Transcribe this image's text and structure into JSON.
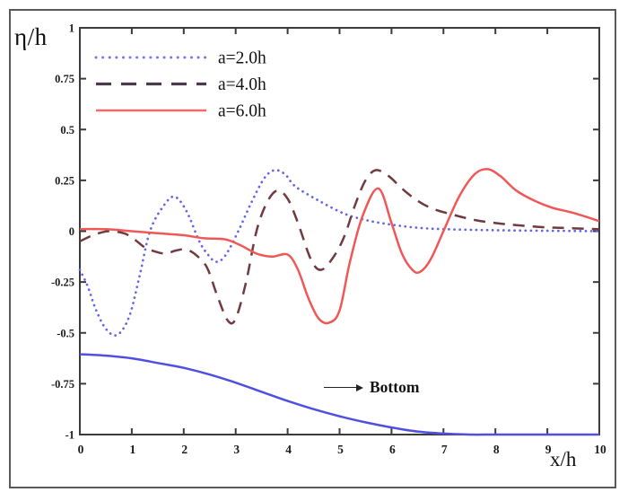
{
  "figure": {
    "y_axis_label": "η/h",
    "x_axis_label": "x/h"
  },
  "chart_data": {
    "type": "line",
    "title": "",
    "xlabel": "x/h",
    "ylabel": "η/h",
    "xlim": [
      0,
      10
    ],
    "ylim": [
      -1,
      1
    ],
    "grid": false,
    "x_ticks": [
      0,
      1,
      2,
      3,
      4,
      5,
      6,
      7,
      8,
      9,
      10
    ],
    "x_tick_labels": [
      "0",
      "1",
      "2",
      "3",
      "4",
      "5",
      "6",
      "7",
      "8",
      "9",
      "10"
    ],
    "y_ticks": [
      1,
      0.75,
      0.5,
      0.25,
      0,
      -0.25,
      -0.5,
      -0.75,
      -1
    ],
    "y_tick_labels": [
      "1",
      "0.75",
      "0.5",
      "0.25",
      "0",
      "-0.25",
      "-0.5",
      "-0.75",
      "-1"
    ],
    "axis_color": "#3b3b3b",
    "tick_label_color": "#1b1b1b",
    "legend": {
      "position": "top-left-inside",
      "entries": [
        {
          "label": "a=2.0h",
          "style": "dotted",
          "color": "#7a7af0"
        },
        {
          "label": "a=4.0h",
          "style": "dashed",
          "color": "#4a3c4c"
        },
        {
          "label": "a=6.0h",
          "style": "solid",
          "color": "#f26a6a"
        }
      ]
    },
    "series": [
      {
        "name": "a=2.0h",
        "style": "dotted",
        "color": "#6565ea",
        "in_legend": true,
        "x": [
          0,
          0.15,
          0.3,
          0.5,
          0.72,
          0.95,
          1.15,
          1.35,
          1.6,
          1.82,
          2.05,
          2.3,
          2.45,
          2.62,
          2.8,
          3.05,
          3.3,
          3.55,
          3.75,
          3.95,
          4.15,
          4.6,
          5.1,
          5.5,
          5.8,
          6.2,
          6.6,
          7.0,
          7.5,
          8.0,
          9.0,
          10
        ],
        "y": [
          -0.19,
          -0.27,
          -0.38,
          -0.48,
          -0.51,
          -0.42,
          -0.22,
          0.0,
          0.12,
          0.17,
          0.1,
          -0.05,
          -0.11,
          -0.15,
          -0.12,
          0.0,
          0.14,
          0.26,
          0.3,
          0.28,
          0.22,
          0.15,
          0.085,
          0.055,
          0.04,
          0.025,
          0.015,
          0.01,
          0.007,
          0.005,
          0.002,
          0.0
        ]
      },
      {
        "name": "a=4.0h",
        "style": "dashed",
        "color": "#703a40",
        "in_legend": true,
        "x": [
          0,
          0.25,
          0.55,
          0.85,
          1.05,
          1.25,
          1.45,
          1.65,
          1.85,
          2.05,
          2.25,
          2.45,
          2.65,
          2.85,
          3.0,
          3.2,
          3.4,
          3.6,
          3.8,
          4.0,
          4.2,
          4.45,
          4.65,
          4.9,
          5.1,
          5.3,
          5.5,
          5.7,
          5.95,
          6.2,
          6.5,
          6.8,
          7.2,
          7.6,
          8.0,
          8.4,
          8.9,
          9.4,
          10
        ],
        "y": [
          -0.05,
          -0.02,
          0.0,
          -0.01,
          -0.04,
          -0.08,
          -0.1,
          -0.11,
          -0.095,
          -0.09,
          -0.12,
          -0.18,
          -0.32,
          -0.44,
          -0.43,
          -0.25,
          0.0,
          0.14,
          0.2,
          0.16,
          0.04,
          -0.14,
          -0.19,
          -0.12,
          -0.02,
          0.13,
          0.25,
          0.3,
          0.27,
          0.21,
          0.15,
          0.11,
          0.08,
          0.055,
          0.04,
          0.03,
          0.02,
          0.015,
          0.01
        ]
      },
      {
        "name": "a=6.0h",
        "style": "solid",
        "color": "#f05858",
        "in_legend": true,
        "x": [
          0,
          0.5,
          1.0,
          1.5,
          2.0,
          2.4,
          2.8,
          3.1,
          3.4,
          3.7,
          4.0,
          4.2,
          4.4,
          4.6,
          4.8,
          5.0,
          5.2,
          5.45,
          5.75,
          6.0,
          6.2,
          6.4,
          6.55,
          6.75,
          7.0,
          7.3,
          7.6,
          7.85,
          8.1,
          8.4,
          8.75,
          9.1,
          9.5,
          10
        ],
        "y": [
          0.01,
          0.01,
          0.0,
          -0.01,
          -0.02,
          -0.035,
          -0.04,
          -0.07,
          -0.11,
          -0.125,
          -0.115,
          -0.19,
          -0.33,
          -0.43,
          -0.45,
          -0.39,
          -0.15,
          0.08,
          0.21,
          0.04,
          -0.11,
          -0.19,
          -0.2,
          -0.14,
          0.0,
          0.17,
          0.28,
          0.305,
          0.27,
          0.2,
          0.15,
          0.115,
          0.09,
          0.05
        ]
      },
      {
        "name": "Bottom",
        "style": "solid",
        "color": "#5050e0",
        "in_legend": false,
        "x": [
          0,
          0.5,
          1,
          1.5,
          2,
          2.5,
          3,
          3.5,
          4,
          4.5,
          5,
          5.5,
          6,
          6.5,
          7,
          7.5,
          8,
          9,
          10
        ],
        "y": [
          -0.605,
          -0.612,
          -0.625,
          -0.648,
          -0.672,
          -0.705,
          -0.745,
          -0.79,
          -0.835,
          -0.875,
          -0.91,
          -0.94,
          -0.965,
          -0.985,
          -0.995,
          -1.0,
          -1.0,
          -1.0,
          -1.0
        ]
      }
    ],
    "annotations": [
      {
        "text": "Bottom",
        "arrow": "right",
        "x": 4.7,
        "y": -0.78
      }
    ]
  }
}
